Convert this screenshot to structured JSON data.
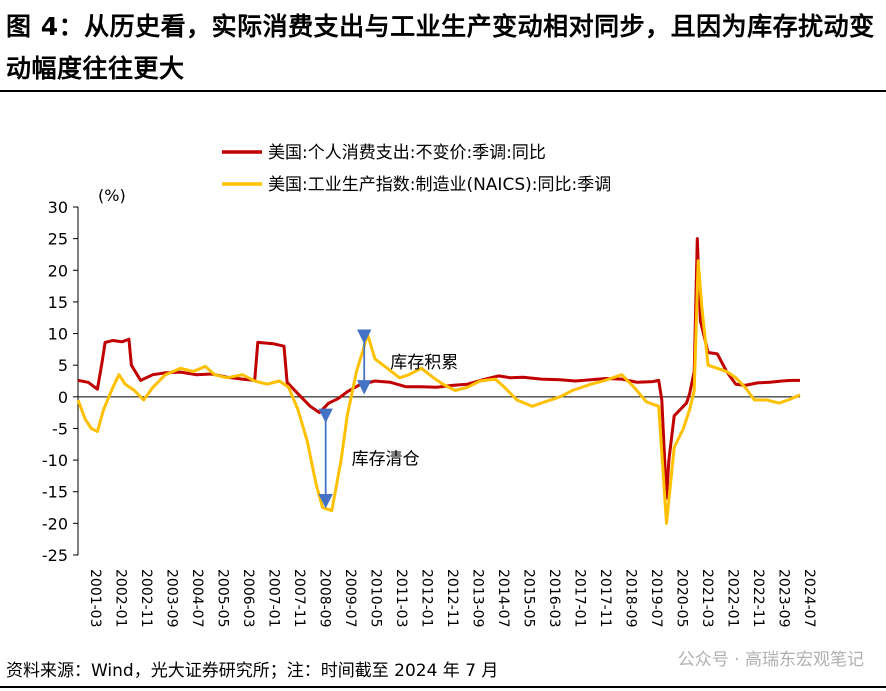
{
  "header": {
    "title": "图 4：从历史看，实际消费支出与工业生产变动相对同步，且因为库存扰动变动幅度往往更大"
  },
  "footer": {
    "source": "资料来源：Wind，光大证券研究所；注：时间截至 2024 年 7 月",
    "watermark": "公众号 · 高瑞东宏观笔记"
  },
  "chart_data": {
    "type": "line",
    "title": "",
    "ylabel": "(%)",
    "xlabel": "",
    "ylim": [
      -25,
      30
    ],
    "yticks": [
      30,
      25,
      20,
      15,
      10,
      5,
      0,
      -5,
      -10,
      -15,
      -20,
      -25
    ],
    "xticks": [
      "2001-03",
      "2002-01",
      "2002-11",
      "2003-09",
      "2004-07",
      "2005-05",
      "2006-03",
      "2007-01",
      "2007-11",
      "2008-09",
      "2009-07",
      "2010-05",
      "2011-03",
      "2012-01",
      "2012-11",
      "2013-09",
      "2014-07",
      "2015-05",
      "2016-03",
      "2017-01",
      "2017-11",
      "2018-09",
      "2019-07",
      "2020-05",
      "2021-03",
      "2022-01",
      "2022-11",
      "2023-09",
      "2024-07"
    ],
    "x_range": [
      2001.17,
      2024.58
    ],
    "legend_position": "top",
    "series": [
      {
        "name": "美国:个人消费支出:不变价:季调:同比",
        "color": "#c00000",
        "points": [
          [
            2001.17,
            2.6
          ],
          [
            2001.5,
            2.3
          ],
          [
            2001.8,
            1.2
          ],
          [
            2001.95,
            5.5
          ],
          [
            2002.05,
            8.6
          ],
          [
            2002.3,
            8.9
          ],
          [
            2002.6,
            8.7
          ],
          [
            2002.82,
            9.1
          ],
          [
            2002.9,
            5.0
          ],
          [
            2003.2,
            2.6
          ],
          [
            2003.6,
            3.5
          ],
          [
            2004.0,
            3.8
          ],
          [
            2004.5,
            3.9
          ],
          [
            2005.0,
            3.5
          ],
          [
            2005.5,
            3.6
          ],
          [
            2006.0,
            3.1
          ],
          [
            2006.5,
            2.8
          ],
          [
            2006.9,
            2.6
          ],
          [
            2007.0,
            8.6
          ],
          [
            2007.5,
            8.4
          ],
          [
            2007.85,
            8.0
          ],
          [
            2007.95,
            2.3
          ],
          [
            2008.3,
            0.5
          ],
          [
            2008.7,
            -1.5
          ],
          [
            2009.0,
            -2.5
          ],
          [
            2009.3,
            -1.0
          ],
          [
            2009.6,
            -0.3
          ],
          [
            2009.9,
            0.8
          ],
          [
            2010.3,
            1.9
          ],
          [
            2010.8,
            2.5
          ],
          [
            2011.3,
            2.3
          ],
          [
            2011.8,
            1.6
          ],
          [
            2012.3,
            1.6
          ],
          [
            2012.8,
            1.5
          ],
          [
            2013.3,
            1.8
          ],
          [
            2013.8,
            2.0
          ],
          [
            2014.3,
            2.7
          ],
          [
            2014.8,
            3.3
          ],
          [
            2015.2,
            3.0
          ],
          [
            2015.6,
            3.1
          ],
          [
            2016.2,
            2.8
          ],
          [
            2016.8,
            2.7
          ],
          [
            2017.3,
            2.5
          ],
          [
            2017.8,
            2.7
          ],
          [
            2018.3,
            2.9
          ],
          [
            2018.8,
            2.8
          ],
          [
            2019.3,
            2.3
          ],
          [
            2019.8,
            2.4
          ],
          [
            2020.0,
            2.6
          ],
          [
            2020.1,
            -0.5
          ],
          [
            2020.25,
            -16.0
          ],
          [
            2020.33,
            -10.0
          ],
          [
            2020.5,
            -3.0
          ],
          [
            2020.7,
            -2.0
          ],
          [
            2020.9,
            -1.0
          ],
          [
            2021.0,
            0.5
          ],
          [
            2021.15,
            4.0
          ],
          [
            2021.25,
            25.0
          ],
          [
            2021.35,
            12.0
          ],
          [
            2021.6,
            7.0
          ],
          [
            2021.9,
            6.8
          ],
          [
            2022.2,
            4.0
          ],
          [
            2022.5,
            2.0
          ],
          [
            2022.8,
            1.8
          ],
          [
            2023.2,
            2.2
          ],
          [
            2023.6,
            2.3
          ],
          [
            2024.0,
            2.5
          ],
          [
            2024.3,
            2.6
          ],
          [
            2024.58,
            2.6
          ]
        ]
      },
      {
        "name": "美国:工业生产指数:制造业(NAICS):同比:季调",
        "color": "#ffc000",
        "points": [
          [
            2001.17,
            -0.5
          ],
          [
            2001.4,
            -3.5
          ],
          [
            2001.6,
            -5.0
          ],
          [
            2001.8,
            -5.5
          ],
          [
            2002.0,
            -2.0
          ],
          [
            2002.3,
            1.5
          ],
          [
            2002.5,
            3.5
          ],
          [
            2002.7,
            2.0
          ],
          [
            2003.0,
            1.0
          ],
          [
            2003.3,
            -0.5
          ],
          [
            2003.6,
            1.5
          ],
          [
            2004.0,
            3.5
          ],
          [
            2004.5,
            4.5
          ],
          [
            2004.9,
            4.0
          ],
          [
            2005.3,
            4.8
          ],
          [
            2005.6,
            3.5
          ],
          [
            2006.0,
            3.0
          ],
          [
            2006.5,
            3.5
          ],
          [
            2006.9,
            2.5
          ],
          [
            2007.3,
            2.0
          ],
          [
            2007.7,
            2.5
          ],
          [
            2008.0,
            1.5
          ],
          [
            2008.3,
            -2.0
          ],
          [
            2008.6,
            -7.0
          ],
          [
            2008.9,
            -14.0
          ],
          [
            2009.1,
            -17.5
          ],
          [
            2009.4,
            -18.0
          ],
          [
            2009.7,
            -10.0
          ],
          [
            2009.9,
            -3.0
          ],
          [
            2010.2,
            4.0
          ],
          [
            2010.45,
            8.0
          ],
          [
            2010.55,
            10.0
          ],
          [
            2010.8,
            6.0
          ],
          [
            2011.2,
            4.5
          ],
          [
            2011.6,
            3.0
          ],
          [
            2011.9,
            3.5
          ],
          [
            2012.3,
            4.5
          ],
          [
            2012.7,
            3.0
          ],
          [
            2013.0,
            2.0
          ],
          [
            2013.4,
            1.0
          ],
          [
            2013.8,
            1.5
          ],
          [
            2014.2,
            2.5
          ],
          [
            2014.7,
            2.8
          ],
          [
            2015.0,
            1.5
          ],
          [
            2015.4,
            -0.5
          ],
          [
            2015.9,
            -1.5
          ],
          [
            2016.3,
            -0.8
          ],
          [
            2016.8,
            0.0
          ],
          [
            2017.2,
            1.0
          ],
          [
            2017.8,
            2.0
          ],
          [
            2018.2,
            2.5
          ],
          [
            2018.8,
            3.5
          ],
          [
            2019.2,
            1.5
          ],
          [
            2019.6,
            -0.8
          ],
          [
            2020.0,
            -1.5
          ],
          [
            2020.25,
            -20.0
          ],
          [
            2020.5,
            -8.0
          ],
          [
            2020.8,
            -5.0
          ],
          [
            2021.0,
            -2.0
          ],
          [
            2021.15,
            1.0
          ],
          [
            2021.28,
            21.5
          ],
          [
            2021.4,
            14.0
          ],
          [
            2021.6,
            5.0
          ],
          [
            2021.9,
            4.5
          ],
          [
            2022.2,
            4.0
          ],
          [
            2022.5,
            3.0
          ],
          [
            2022.8,
            1.5
          ],
          [
            2023.1,
            -0.5
          ],
          [
            2023.5,
            -0.5
          ],
          [
            2023.9,
            -1.0
          ],
          [
            2024.2,
            -0.5
          ],
          [
            2024.58,
            0.3
          ]
        ]
      }
    ],
    "annotations": [
      {
        "text": "库存积累",
        "x_from": 2010.45,
        "y_from": 9.5,
        "x_to": 2010.45,
        "y_to": 1.5
      },
      {
        "text": "库存清仓",
        "x_from": 2009.2,
        "y_from": -3.0,
        "x_to": 2009.2,
        "y_to": -16.5
      }
    ]
  }
}
